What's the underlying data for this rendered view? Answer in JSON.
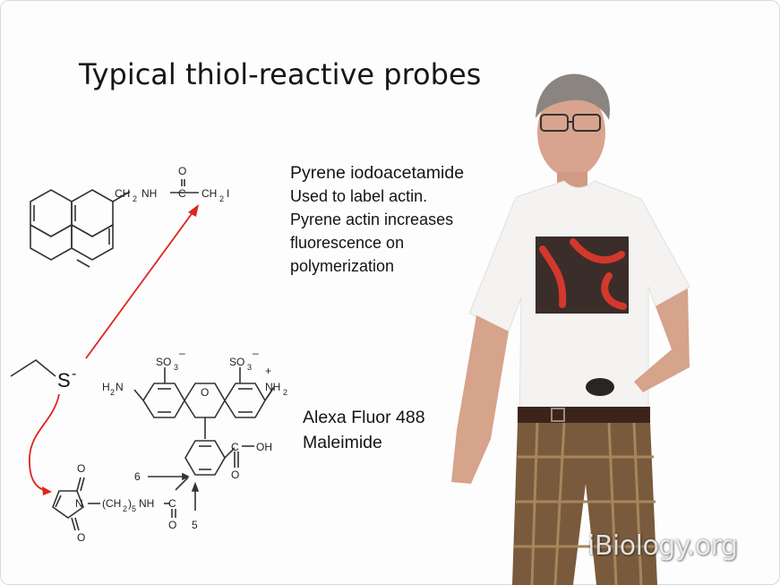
{
  "slide": {
    "title": "Typical thiol-reactive probes",
    "probe1": {
      "lines": [
        "Pyrene iodoacetamide",
        "Used to label actin.",
        "Pyrene actin increases",
        "fluorescence on",
        "polymerization"
      ],
      "structure_labels": {
        "ch2nh": "CH",
        "sub2": "2",
        "nh": "NH",
        "c": "C",
        "o": "O",
        "ch2i": "CH",
        "i": "I"
      }
    },
    "probe2": {
      "lines": [
        "Alexa Fluor 488",
        "Maleimide"
      ],
      "structure_labels": {
        "so3": "SO",
        "sub3": "3",
        "minus": "–",
        "plus": "+",
        "h2n": "H",
        "n": "N",
        "nh2": "NH",
        "sub2": "2",
        "o": "O",
        "cooh": "C",
        "oh": "OH",
        "six": "6",
        "five": "5",
        "ch2_5": "(CH",
        "sub5": "5",
        "nh_c": "NH",
        "c": "C"
      }
    },
    "thiolate": {
      "s": "S",
      "charge": "-"
    }
  },
  "colors": {
    "arrow": "#e0241b",
    "bond": "#333333",
    "text": "#141414"
  },
  "watermark": "iBiology.org"
}
